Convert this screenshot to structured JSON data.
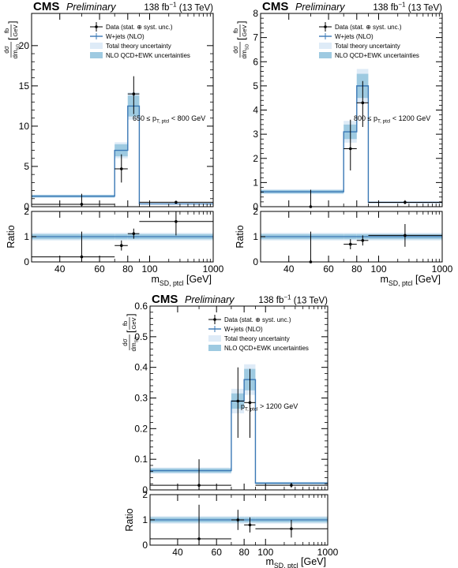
{
  "chart_data": [
    {
      "type": "step",
      "header": {
        "cms": "CMS",
        "preliminary": "Preliminary",
        "lumi_value": "138 fb",
        "lumi_exp": "−1",
        "energy": "(13 TeV)"
      },
      "ylabel": {
        "num": "dσ",
        "den": "dm",
        "den_sub": "SD",
        "unit_num": "fb",
        "unit_den": "GeV"
      },
      "ratio_label": "Ratio",
      "xlabel": {
        "main": "m",
        "sub": "SD, ptcl",
        "unit": "[GeV]"
      },
      "annotation": {
        "pre": "650 ≤ p",
        "sub": "T, ptcl",
        "post": " < 800 GeV"
      },
      "legend": [
        "Data (stat. ⊕ syst. unc.)",
        "W+jets (NLO)",
        "Total theory uncertainty",
        "NLO QCD+EWK uncertainties"
      ],
      "ylim": [
        0,
        24
      ],
      "yticks": [
        0,
        5,
        10,
        15,
        20
      ],
      "ytick_labels": [
        "0",
        "5",
        "10",
        "15",
        "20"
      ],
      "xticks": [
        40,
        60,
        80,
        100,
        1000
      ],
      "xtick_labels": [
        "40",
        "60",
        "80",
        "100",
        "1000"
      ],
      "bins": [
        [
          30,
          70
        ],
        [
          70,
          80
        ],
        [
          80,
          90
        ],
        [
          90,
          1000
        ]
      ],
      "theory": [
        1.3,
        7.0,
        12.5,
        0.35
      ],
      "total_unc": [
        0.2,
        1.0,
        1.7,
        0.06
      ],
      "nlo_unc": [
        0.15,
        0.75,
        1.3,
        0.04
      ],
      "data": [
        {
          "x": 50,
          "y": 0.3,
          "xerr": [
            30,
            70
          ],
          "yerr": [
            0,
            1.6
          ]
        },
        {
          "x": 75,
          "y": 4.7,
          "xerr": [
            70,
            80
          ],
          "yerr": [
            3.0,
            6.5
          ]
        },
        {
          "x": 85,
          "y": 14.0,
          "xerr": [
            80,
            90
          ],
          "yerr": [
            11.5,
            16.2
          ]
        },
        {
          "x": 260,
          "y": 0.55,
          "xerr": [
            90,
            1000
          ],
          "yerr": [
            0.35,
            0.75
          ]
        }
      ],
      "ratio": {
        "ylim": [
          0,
          2
        ],
        "yticks": [
          0,
          1,
          2
        ],
        "ytick_labels": [
          "0",
          "1",
          "2"
        ],
        "total_unc": [
          0.15,
          0.15,
          0.15,
          0.15
        ],
        "nlo_unc": [
          0.1,
          0.1,
          0.1,
          0.1
        ],
        "data": [
          {
            "x": 50,
            "y": 0.2,
            "xerr": [
              30,
              70
            ],
            "yerr": [
              0,
              1.2
            ]
          },
          {
            "x": 75,
            "y": 0.65,
            "xerr": [
              70,
              80
            ],
            "yerr": [
              0.45,
              0.85
            ]
          },
          {
            "x": 85,
            "y": 1.12,
            "xerr": [
              80,
              90
            ],
            "yerr": [
              0.92,
              1.32
            ]
          },
          {
            "x": 260,
            "y": 1.6,
            "xerr": [
              90,
              1000
            ],
            "yerr": [
              1.05,
              2.1
            ]
          }
        ]
      }
    },
    {
      "type": "step",
      "header": {
        "cms": "CMS",
        "preliminary": "Preliminary",
        "lumi_value": "138 fb",
        "lumi_exp": "−1",
        "energy": "(13 TeV)"
      },
      "ylabel": {
        "num": "dσ",
        "den": "dm",
        "den_sub": "SD",
        "unit_num": "fb",
        "unit_den": "GeV"
      },
      "ratio_label": "Ratio",
      "xlabel": {
        "main": "m",
        "sub": "SD, ptcl",
        "unit": "[GeV]"
      },
      "annotation": {
        "pre": "800 ≤ p",
        "sub": "T, ptcl",
        "post": " < 1200 GeV"
      },
      "legend": [
        "Data (stat. ⊕ syst. unc.)",
        "W+jets (NLO)",
        "Total theory uncertainty",
        "NLO QCD+EWK uncertainties"
      ],
      "ylim": [
        0,
        8
      ],
      "yticks": [
        0,
        1,
        2,
        3,
        4,
        5,
        6,
        7,
        8
      ],
      "ytick_labels": [
        "0",
        "1",
        "2",
        "3",
        "4",
        "5",
        "6",
        "7",
        "8"
      ],
      "xticks": [
        40,
        60,
        80,
        100,
        1000
      ],
      "xtick_labels": [
        "40",
        "60",
        "80",
        "100",
        "1000"
      ],
      "bins": [
        [
          30,
          70
        ],
        [
          70,
          80
        ],
        [
          80,
          90
        ],
        [
          90,
          1000
        ]
      ],
      "theory": [
        0.62,
        3.1,
        5.0,
        0.18
      ],
      "total_unc": [
        0.1,
        0.45,
        0.7,
        0.03
      ],
      "nlo_unc": [
        0.07,
        0.3,
        0.5,
        0.02
      ],
      "data": [
        {
          "x": 50,
          "y": 0.0,
          "xerr": [
            30,
            70
          ],
          "yerr": [
            0,
            0.7
          ]
        },
        {
          "x": 75,
          "y": 2.4,
          "xerr": [
            70,
            80
          ],
          "yerr": [
            1.5,
            3.6
          ]
        },
        {
          "x": 85,
          "y": 4.3,
          "xerr": [
            80,
            90
          ],
          "yerr": [
            3.3,
            5.2
          ]
        },
        {
          "x": 260,
          "y": 0.18,
          "xerr": [
            90,
            1000
          ],
          "yerr": [
            0.1,
            0.27
          ]
        }
      ],
      "ratio": {
        "ylim": [
          0,
          2
        ],
        "yticks": [
          0,
          1,
          2
        ],
        "ytick_labels": [
          "0",
          "1",
          "2"
        ],
        "total_unc": [
          0.15,
          0.15,
          0.15,
          0.15
        ],
        "nlo_unc": [
          0.1,
          0.1,
          0.1,
          0.1
        ],
        "data": [
          {
            "x": 50,
            "y": 0.0,
            "xerr": [
              30,
              70
            ],
            "yerr": [
              0,
              1.2
            ]
          },
          {
            "x": 75,
            "y": 0.7,
            "xerr": [
              70,
              80
            ],
            "yerr": [
              0.5,
              0.9
            ]
          },
          {
            "x": 85,
            "y": 0.85,
            "xerr": [
              80,
              90
            ],
            "yerr": [
              0.65,
              1.05
            ]
          },
          {
            "x": 260,
            "y": 1.05,
            "xerr": [
              90,
              1000
            ],
            "yerr": [
              0.6,
              1.5
            ]
          }
        ]
      }
    },
    {
      "type": "step",
      "header": {
        "cms": "CMS",
        "preliminary": "Preliminary",
        "lumi_value": "138 fb",
        "lumi_exp": "−1",
        "energy": "(13 TeV)"
      },
      "ylabel": {
        "num": "dσ",
        "den": "dm",
        "den_sub": "SD",
        "unit_num": "fb",
        "unit_den": "GeV"
      },
      "ratio_label": "Ratio",
      "xlabel": {
        "main": "m",
        "sub": "SD, ptcl",
        "unit": "[GeV]"
      },
      "annotation": {
        "pre": "p",
        "sub": "T, ptcl",
        "post": " > 1200 GeV"
      },
      "legend": [
        "Data (stat. ⊕ syst. unc.)",
        "W+jets (NLO)",
        "Total theory uncertainty",
        "NLO QCD+EWK uncertainties"
      ],
      "ylim": [
        0,
        0.6
      ],
      "yticks": [
        0,
        0.1,
        0.2,
        0.3,
        0.4,
        0.5,
        0.6
      ],
      "ytick_labels": [
        "0",
        "0.1",
        "0.2",
        "0.3",
        "0.4",
        "0.5",
        "0.6"
      ],
      "xticks": [
        40,
        60,
        80,
        100,
        1000
      ],
      "xtick_labels": [
        "40",
        "60",
        "80",
        "100",
        "1000"
      ],
      "bins": [
        [
          30,
          70
        ],
        [
          70,
          80
        ],
        [
          80,
          90
        ],
        [
          90,
          1000
        ]
      ],
      "theory": [
        0.063,
        0.29,
        0.36,
        0.022
      ],
      "total_unc": [
        0.01,
        0.04,
        0.05,
        0.004
      ],
      "nlo_unc": [
        0.007,
        0.025,
        0.035,
        0.003
      ],
      "data": [
        {
          "x": 50,
          "y": 0.015,
          "xerr": [
            30,
            70
          ],
          "yerr": [
            0,
            0.1
          ]
        },
        {
          "x": 75,
          "y": 0.29,
          "xerr": [
            70,
            80
          ],
          "yerr": [
            0.17,
            0.4
          ]
        },
        {
          "x": 85,
          "y": 0.285,
          "xerr": [
            80,
            90
          ],
          "yerr": [
            0.17,
            0.395
          ]
        },
        {
          "x": 260,
          "y": 0.015,
          "xerr": [
            90,
            1000
          ],
          "yerr": [
            0.007,
            0.023
          ]
        }
      ],
      "ratio": {
        "ylim": [
          0,
          2
        ],
        "yticks": [
          0,
          1,
          2
        ],
        "ytick_labels": [
          "0",
          "1",
          "2"
        ],
        "total_unc": [
          0.15,
          0.15,
          0.15,
          0.15
        ],
        "nlo_unc": [
          0.1,
          0.1,
          0.1,
          0.1
        ],
        "data": [
          {
            "x": 50,
            "y": 0.25,
            "xerr": [
              30,
              70
            ],
            "yerr": [
              0,
              1.6
            ]
          },
          {
            "x": 75,
            "y": 1.0,
            "xerr": [
              70,
              80
            ],
            "yerr": [
              0.6,
              1.4
            ]
          },
          {
            "x": 85,
            "y": 0.8,
            "xerr": [
              80,
              90
            ],
            "yerr": [
              0.5,
              1.1
            ]
          },
          {
            "x": 260,
            "y": 0.65,
            "xerr": [
              90,
              1000
            ],
            "yerr": [
              0.3,
              1.0
            ]
          }
        ]
      }
    }
  ],
  "colors": {
    "theory_line": "#3a78b5",
    "total_unc": "#deebf7",
    "nlo_unc": "#9ecae1",
    "data": "#000000"
  }
}
